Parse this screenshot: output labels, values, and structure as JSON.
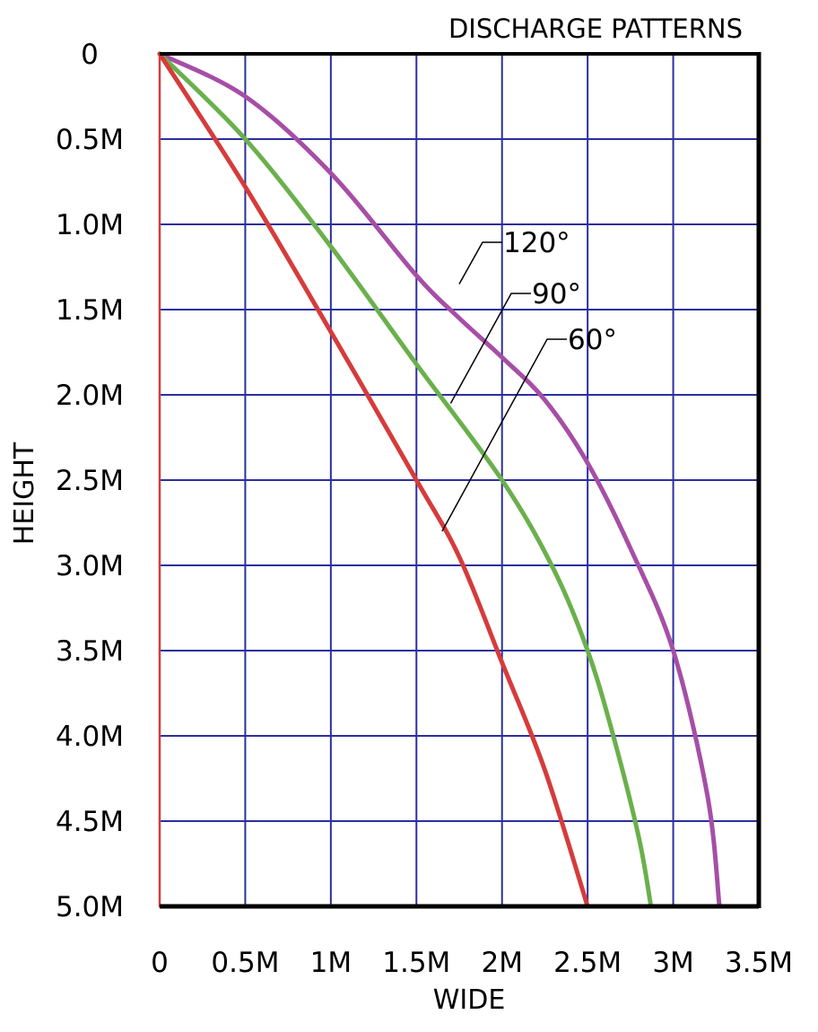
{
  "chart_data": {
    "type": "line",
    "title": "DISCHARGE PATTERNS",
    "xlabel": "WIDE",
    "ylabel": "HEIGHT",
    "xlim": [
      0,
      3.5
    ],
    "ylim": [
      0,
      5.0
    ],
    "y_inverted": true,
    "grid": true,
    "x_ticks": [
      0,
      0.5,
      1,
      1.5,
      2,
      2.5,
      3,
      3.5
    ],
    "x_tick_labels": [
      "0",
      "0.5M",
      "1M",
      "1.5M",
      "2M",
      "2.5M",
      "3M",
      "3.5M"
    ],
    "y_ticks": [
      0,
      0.5,
      1.0,
      1.5,
      2.0,
      2.5,
      3.0,
      3.5,
      4.0,
      4.5,
      5.0
    ],
    "y_tick_labels": [
      "0",
      "0.5M",
      "1.0M",
      "1.5M",
      "2.0M",
      "2.5M",
      "3.0M",
      "3.5M",
      "4.0M",
      "4.5M",
      "5.0M"
    ],
    "series": [
      {
        "name": "120°",
        "color": "#a64ea6",
        "points": [
          [
            0,
            0
          ],
          [
            0.5,
            0.25
          ],
          [
            1,
            0.7
          ],
          [
            1.5,
            1.3
          ],
          [
            1.75,
            1.55
          ],
          [
            2,
            1.78
          ],
          [
            2.25,
            2.03
          ],
          [
            2.5,
            2.4
          ],
          [
            2.75,
            2.9
          ],
          [
            3,
            3.5
          ],
          [
            3.2,
            4.35
          ],
          [
            3.27,
            5.0
          ]
        ]
      },
      {
        "name": "90°",
        "color": "#6ab04c",
        "points": [
          [
            0,
            0
          ],
          [
            0.5,
            0.5
          ],
          [
            1,
            1.13
          ],
          [
            1.5,
            1.82
          ],
          [
            2,
            2.5
          ],
          [
            2.3,
            3.02
          ],
          [
            2.5,
            3.5
          ],
          [
            2.65,
            4.0
          ],
          [
            2.8,
            4.6
          ],
          [
            2.87,
            5.0
          ]
        ]
      },
      {
        "name": "60°",
        "color": "#d63b3b",
        "points": [
          [
            0,
            0
          ],
          [
            0.5,
            0.78
          ],
          [
            1,
            1.63
          ],
          [
            1.5,
            2.5
          ],
          [
            1.75,
            2.95
          ],
          [
            2,
            3.57
          ],
          [
            2.25,
            4.2
          ],
          [
            2.5,
            5.0
          ]
        ]
      },
      {
        "name": "",
        "color": "#d63b3b",
        "points": [
          [
            0,
            0
          ],
          [
            0,
            5.0
          ]
        ]
      }
    ],
    "callouts": [
      {
        "label": "120°",
        "target": [
          1.75,
          1.35
        ]
      },
      {
        "label": "90°",
        "target": [
          1.7,
          2.05
        ]
      },
      {
        "label": "60°",
        "target": [
          1.65,
          2.8
        ]
      }
    ]
  }
}
